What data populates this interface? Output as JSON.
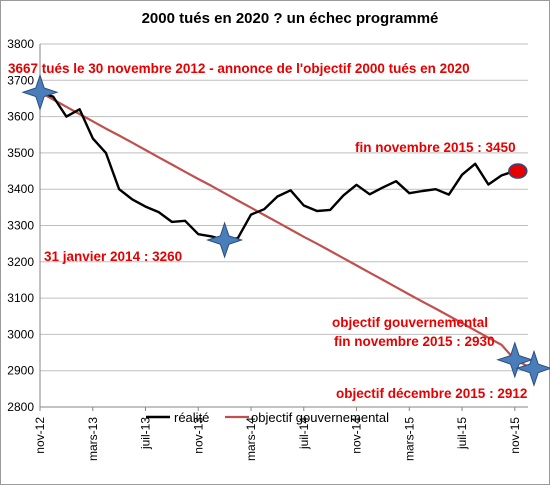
{
  "chart_data": {
    "type": "line",
    "title": "2000 tués en 2020 ? un échec programmé",
    "xlabel": "",
    "ylabel": "",
    "ylim": [
      2800,
      3800
    ],
    "yticks": [
      2800,
      2900,
      3000,
      3100,
      3200,
      3300,
      3400,
      3500,
      3600,
      3700,
      3800
    ],
    "x_tick_labels": [
      "nov-12",
      "mars-13",
      "juil-13",
      "nov-13",
      "mars-14",
      "juil-14",
      "nov-14",
      "mars-15",
      "juil-15",
      "nov-15"
    ],
    "x_months": [
      "nov-12",
      "déc-12",
      "janv-13",
      "févr-13",
      "mars-13",
      "avr-13",
      "mai-13",
      "juin-13",
      "juil-13",
      "août-13",
      "sept-13",
      "oct-13",
      "nov-13",
      "déc-13",
      "janv-14",
      "févr-14",
      "mars-14",
      "avr-14",
      "mai-14",
      "juin-14",
      "juil-14",
      "août-14",
      "sept-14",
      "oct-14",
      "nov-14",
      "déc-14",
      "janv-15",
      "févr-15",
      "mars-15",
      "avr-15",
      "mai-15",
      "juin-15",
      "juil-15",
      "août-15",
      "sept-15",
      "oct-15",
      "nov-15",
      "déc-15"
    ],
    "grid": "horizontal",
    "legend_position": "bottom-center",
    "series": [
      {
        "name": "réalité",
        "color": "#000000",
        "values": [
          3667,
          3655,
          3600,
          3620,
          3540,
          3500,
          3400,
          3372,
          3352,
          3337,
          3310,
          3313,
          3276,
          3270,
          3260,
          3265,
          3330,
          3345,
          3380,
          3397,
          3355,
          3340,
          3343,
          3383,
          3412,
          3386,
          3405,
          3422,
          3389,
          3395,
          3400,
          3385,
          3440,
          3470,
          3413,
          3438,
          3450,
          null
        ]
      },
      {
        "name": "objectif gouvernemental",
        "color": "#c0504d",
        "values": [
          3667,
          3647,
          3627,
          3607,
          3587,
          3567,
          3548,
          3528,
          3508,
          3488,
          3468,
          3448,
          3428,
          3409,
          3389,
          3369,
          3349,
          3329,
          3309,
          3289,
          3269,
          3250,
          3230,
          3210,
          3190,
          3170,
          3150,
          3130,
          3110,
          3090,
          3071,
          3051,
          3031,
          3011,
          2991,
          2971,
          2930,
          2912
        ]
      }
    ],
    "annotations": [
      {
        "text": "3667 tués  le 30 novembre 2012 - annonce de l'objectif 2000 tués en 2020",
        "month": "nov-12",
        "value": 3667,
        "marker": "star"
      },
      {
        "text": "31 janvier 2014 : 3260",
        "month": "janv-14",
        "value": 3260,
        "marker": "star"
      },
      {
        "text": "fin novembre 2015 : 3450",
        "month": "nov-15",
        "value": 3450,
        "marker": "red-circle"
      },
      {
        "text": "objectif gouvernemental",
        "month": "nov-15",
        "value": 2930,
        "marker": "star"
      },
      {
        "text": "fin novembre 2015 : 2930",
        "month": "nov-15",
        "value": 2930,
        "marker": "none"
      },
      {
        "text": "objectif  décembre 2015 : 2912",
        "month": "déc-15",
        "value": 2912,
        "marker": "star"
      }
    ],
    "colors": {
      "annotation": "#e60000",
      "star_fill": "#4a7ebb",
      "star_stroke": "#2a4d80",
      "grid": "#bfbfbf",
      "marker_red": "#e60000",
      "marker_ring": "#2a4d80"
    }
  }
}
